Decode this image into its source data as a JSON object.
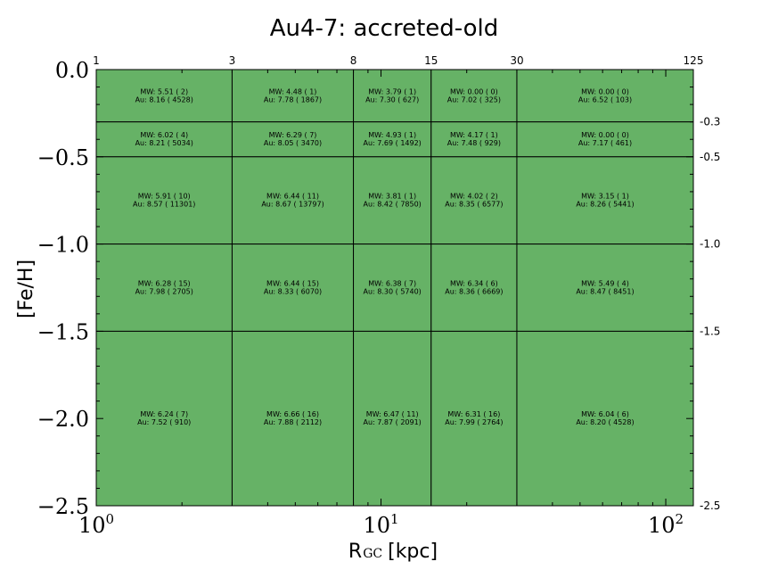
{
  "chart_data": {
    "type": "heatmap",
    "title": "Au4-7: accreted-old",
    "xlabel_main": "R",
    "xlabel_sub": "GC",
    "xlabel_unit": "[kpc]",
    "ylabel": "[Fe/H]",
    "xscale": "log",
    "xlim": [
      1,
      125
    ],
    "ylim": [
      -2.5,
      0.0
    ],
    "cell_color": "#66b266",
    "x_tick_labels": [
      {
        "value": 1,
        "label": "10^0"
      },
      {
        "value": 10,
        "label": "10^1"
      },
      {
        "value": 100,
        "label": "10^2"
      }
    ],
    "y_tick_labels": [
      {
        "value": 0.0,
        "label": "0.0"
      },
      {
        "value": -0.5,
        "label": "−0.5"
      },
      {
        "value": -1.0,
        "label": "−1.0"
      },
      {
        "value": -1.5,
        "label": "−1.5"
      },
      {
        "value": -2.0,
        "label": "−2.0"
      },
      {
        "value": -2.5,
        "label": "−2.5"
      }
    ],
    "x_bin_edges": [
      1,
      3,
      8,
      15,
      30,
      125
    ],
    "x_bin_edge_labels": [
      "1",
      "3",
      "8",
      "15",
      "30",
      "125"
    ],
    "y_bin_edges": [
      0.0,
      -0.3,
      -0.5,
      -1.0,
      -1.5,
      -2.5
    ],
    "y_bin_edge_labels": [
      "-0.3",
      "-0.5",
      "-1.0",
      "-1.5",
      "-2.5"
    ],
    "cells": [
      [
        {
          "mw": "MW: 5.51 ( 2)",
          "au": "Au: 8.16 ( 4528)"
        },
        {
          "mw": "MW: 4.48 ( 1)",
          "au": "Au: 7.78 ( 1867)"
        },
        {
          "mw": "MW: 3.79 ( 1)",
          "au": "Au: 7.30 ( 627)"
        },
        {
          "mw": "MW: 0.00 ( 0)",
          "au": "Au: 7.02 ( 325)"
        },
        {
          "mw": "MW: 0.00 ( 0)",
          "au": "Au: 6.52 ( 103)"
        }
      ],
      [
        {
          "mw": "MW: 6.02 ( 4)",
          "au": "Au: 8.21 ( 5034)"
        },
        {
          "mw": "MW: 6.29 ( 7)",
          "au": "Au: 8.05 ( 3470)"
        },
        {
          "mw": "MW: 4.93 ( 1)",
          "au": "Au: 7.69 ( 1492)"
        },
        {
          "mw": "MW: 4.17 ( 1)",
          "au": "Au: 7.48 ( 929)"
        },
        {
          "mw": "MW: 0.00 ( 0)",
          "au": "Au: 7.17 ( 461)"
        }
      ],
      [
        {
          "mw": "MW: 5.91 ( 10)",
          "au": "Au: 8.57 ( 11301)"
        },
        {
          "mw": "MW: 6.44 ( 11)",
          "au": "Au: 8.67 ( 13797)"
        },
        {
          "mw": "MW: 3.81 ( 1)",
          "au": "Au: 8.42 ( 7850)"
        },
        {
          "mw": "MW: 4.02 ( 2)",
          "au": "Au: 8.35 ( 6577)"
        },
        {
          "mw": "MW: 3.15 ( 1)",
          "au": "Au: 8.26 ( 5441)"
        }
      ],
      [
        {
          "mw": "MW: 6.28 ( 15)",
          "au": "Au: 7.98 ( 2705)"
        },
        {
          "mw": "MW: 6.44 ( 15)",
          "au": "Au: 8.33 ( 6070)"
        },
        {
          "mw": "MW: 6.38 ( 7)",
          "au": "Au: 8.30 ( 5740)"
        },
        {
          "mw": "MW: 6.34 ( 6)",
          "au": "Au: 8.36 ( 6669)"
        },
        {
          "mw": "MW: 5.49 ( 4)",
          "au": "Au: 8.47 ( 8451)"
        }
      ],
      [
        {
          "mw": "MW: 6.24 ( 7)",
          "au": "Au: 7.52 ( 910)"
        },
        {
          "mw": "MW: 6.66 ( 16)",
          "au": "Au: 7.88 ( 2112)"
        },
        {
          "mw": "MW: 6.47 ( 11)",
          "au": "Au: 7.87 ( 2091)"
        },
        {
          "mw": "MW: 6.31 ( 16)",
          "au": "Au: 7.99 ( 2764)"
        },
        {
          "mw": "MW: 6.04 ( 6)",
          "au": "Au: 8.20 ( 4528)"
        }
      ]
    ]
  }
}
